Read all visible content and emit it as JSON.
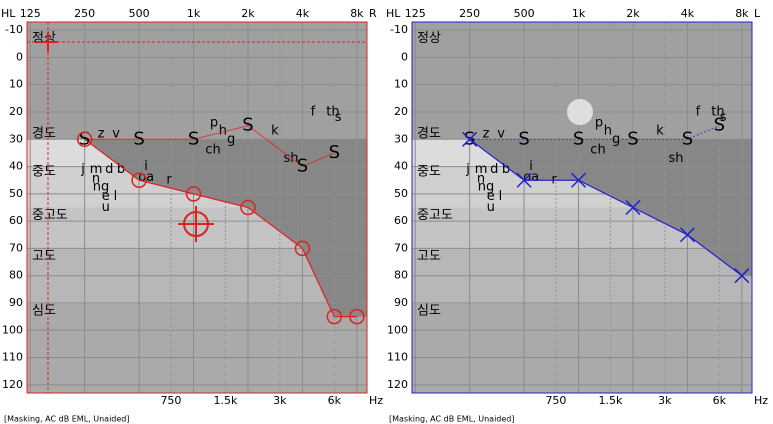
{
  "chart_data": [
    {
      "type": "line",
      "hl_label": "HL",
      "ear_label": "R",
      "hz_label": "Hz",
      "footer": "[Masking, AC dB EML, Unaided]",
      "frame_color": "#e02020",
      "xscale": "log",
      "xlim": [
        120,
        9100
      ],
      "ylim": [
        -13,
        123
      ],
      "xticks": [
        125,
        250,
        500,
        {
          "value": 1000,
          "label": "1k"
        },
        {
          "value": 2000,
          "label": "2k"
        },
        {
          "value": 4000,
          "label": "4k"
        },
        {
          "value": 8000,
          "label": "8k"
        }
      ],
      "minor_xticks": [
        750,
        {
          "value": 1500,
          "label": "1.5k"
        },
        {
          "value": 3000,
          "label": "3k"
        },
        {
          "value": 6000,
          "label": "6k"
        }
      ],
      "yticks": [
        -10,
        0,
        10,
        20,
        30,
        40,
        50,
        60,
        70,
        80,
        90,
        100,
        110,
        120
      ],
      "series": [
        {
          "color": "#e02020",
          "marker": "circle",
          "x": [
            250,
            500,
            1000,
            2000,
            4000,
            6000,
            8000
          ],
          "values": [
            30,
            45,
            50,
            55,
            70,
            95,
            95
          ]
        }
      ],
      "speech_level": {
        "label": "S",
        "color": "#e02020",
        "x": [
          250,
          500,
          1000,
          2000,
          4000,
          6000
        ],
        "values": [
          30,
          30,
          30,
          25,
          40,
          35
        ]
      }
    },
    {
      "type": "line",
      "hl_label": "HL",
      "ear_label": "L",
      "hz_label": "Hz",
      "footer": "[Masking, AC dB EML, Unaided]",
      "frame_color": "#2020d0",
      "xscale": "log",
      "xlim": [
        120,
        9100
      ],
      "ylim": [
        -13,
        123
      ],
      "xticks": [
        125,
        250,
        500,
        {
          "value": 1000,
          "label": "1k"
        },
        {
          "value": 2000,
          "label": "2k"
        },
        {
          "value": 4000,
          "label": "4k"
        },
        {
          "value": 8000,
          "label": "8k"
        }
      ],
      "minor_xticks": [
        750,
        {
          "value": 1500,
          "label": "1.5k"
        },
        {
          "value": 3000,
          "label": "3k"
        },
        {
          "value": 6000,
          "label": "6k"
        }
      ],
      "yticks": [
        -10,
        0,
        10,
        20,
        30,
        40,
        50,
        60,
        70,
        80,
        90,
        100,
        110,
        120
      ],
      "series": [
        {
          "color": "#2020d0",
          "marker": "cross",
          "x": [
            250,
            500,
            1000,
            2000,
            4000,
            8000
          ],
          "values": [
            30,
            45,
            45,
            55,
            65,
            80
          ]
        }
      ],
      "speech_level": {
        "label": "S",
        "color": "#2020d0",
        "x": [
          250,
          500,
          1000,
          2000,
          4000,
          6000
        ],
        "values": [
          30,
          30,
          30,
          30,
          30,
          25
        ]
      }
    }
  ],
  "degree_labels": [
    {
      "label": "정상",
      "y": -7
    },
    {
      "label": "경도",
      "y": 28
    },
    {
      "label": "중도",
      "y": 42
    },
    {
      "label": "중고도",
      "y": 58
    },
    {
      "label": "고도",
      "y": 73
    },
    {
      "label": "심도",
      "y": 93
    }
  ],
  "speech_sounds": [
    {
      "label": "z",
      "x": 308,
      "y": 28
    },
    {
      "label": "v",
      "x": 373,
      "y": 28
    },
    {
      "label": "p",
      "x": 1298,
      "y": 24
    },
    {
      "label": "h",
      "x": 1452,
      "y": 27
    },
    {
      "label": "g",
      "x": 1613,
      "y": 30
    },
    {
      "label": "ch",
      "x": 1281,
      "y": 34
    },
    {
      "label": "k",
      "x": 2815,
      "y": 27
    },
    {
      "label": "f",
      "x": 4572,
      "y": 20
    },
    {
      "label": "th",
      "x": 5895,
      "y": 20
    },
    {
      "label": "s",
      "x": 6300,
      "y": 22
    },
    {
      "label": "sh",
      "x": 3456,
      "y": 37
    },
    {
      "label": "j",
      "x": 245,
      "y": 41
    },
    {
      "label": "m",
      "x": 289,
      "y": 41
    },
    {
      "label": "d",
      "x": 342,
      "y": 41
    },
    {
      "label": "b",
      "x": 397,
      "y": 41
    },
    {
      "label": "n",
      "x": 289,
      "y": 44.5
    },
    {
      "label": "ng",
      "x": 308,
      "y": 47.5
    },
    {
      "label": "e",
      "x": 327,
      "y": 51
    },
    {
      "label": "l",
      "x": 370,
      "y": 51
    },
    {
      "label": "u",
      "x": 327,
      "y": 55
    },
    {
      "label": "i",
      "x": 546,
      "y": 40
    },
    {
      "label": "o",
      "x": 520,
      "y": 44
    },
    {
      "label": "a",
      "x": 575,
      "y": 44
    },
    {
      "label": "r",
      "x": 732,
      "y": 45
    }
  ]
}
